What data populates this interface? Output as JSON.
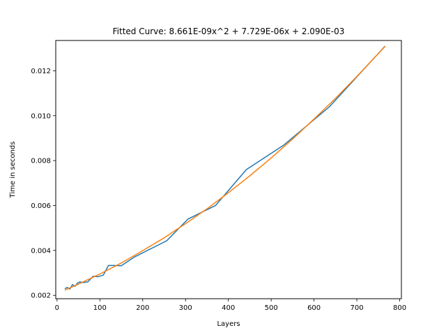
{
  "chart_data": {
    "type": "line",
    "title": "Fitted Curve: 8.661E-09x^2 + 7.729E-06x + 2.090E-03",
    "xlabel": "Layers",
    "ylabel": "Time in seconds",
    "xlim": [
      -3,
      804
    ],
    "ylim": [
      0.00185,
      0.01335
    ],
    "x_ticks": [
      0,
      100,
      200,
      300,
      400,
      500,
      600,
      700,
      800
    ],
    "x_tick_labels": [
      "0",
      "100",
      "200",
      "300",
      "400",
      "500",
      "600",
      "700",
      "800"
    ],
    "y_ticks": [
      0.002,
      0.004,
      0.006,
      0.008,
      0.01,
      0.012
    ],
    "y_tick_labels": [
      "0.002",
      "0.004",
      "0.006",
      "0.008",
      "0.010",
      "0.012"
    ],
    "grid": false,
    "series": [
      {
        "color": "#1f77b4",
        "x": [
          18,
          24,
          30,
          36,
          42,
          48,
          54,
          60,
          72,
          84,
          96,
          108,
          120,
          132,
          150,
          180,
          256,
          306,
          370,
          442,
          530,
          636,
          766
        ],
        "y": [
          0.0023,
          0.00235,
          0.00228,
          0.00248,
          0.0024,
          0.00255,
          0.0026,
          0.00257,
          0.0026,
          0.00285,
          0.00283,
          0.0029,
          0.00333,
          0.00333,
          0.00332,
          0.0037,
          0.00443,
          0.0054,
          0.006,
          0.0076,
          0.0087,
          0.0104,
          0.0131
        ]
      },
      {
        "color": "#ff7f0e",
        "fit": {
          "a": 8.661e-09,
          "b": 7.729e-06,
          "c": 0.00209
        },
        "x": [
          18,
          50,
          100,
          150,
          200,
          250,
          300,
          350,
          400,
          450,
          500,
          550,
          600,
          650,
          700,
          766
        ],
        "y": [
          0.00223,
          0.0025,
          0.00295,
          0.00344,
          0.00399,
          0.00456,
          0.00519,
          0.00585,
          0.00657,
          0.00732,
          0.00812,
          0.00896,
          0.00985,
          0.01077,
          0.01175,
          0.01309
        ]
      }
    ]
  }
}
